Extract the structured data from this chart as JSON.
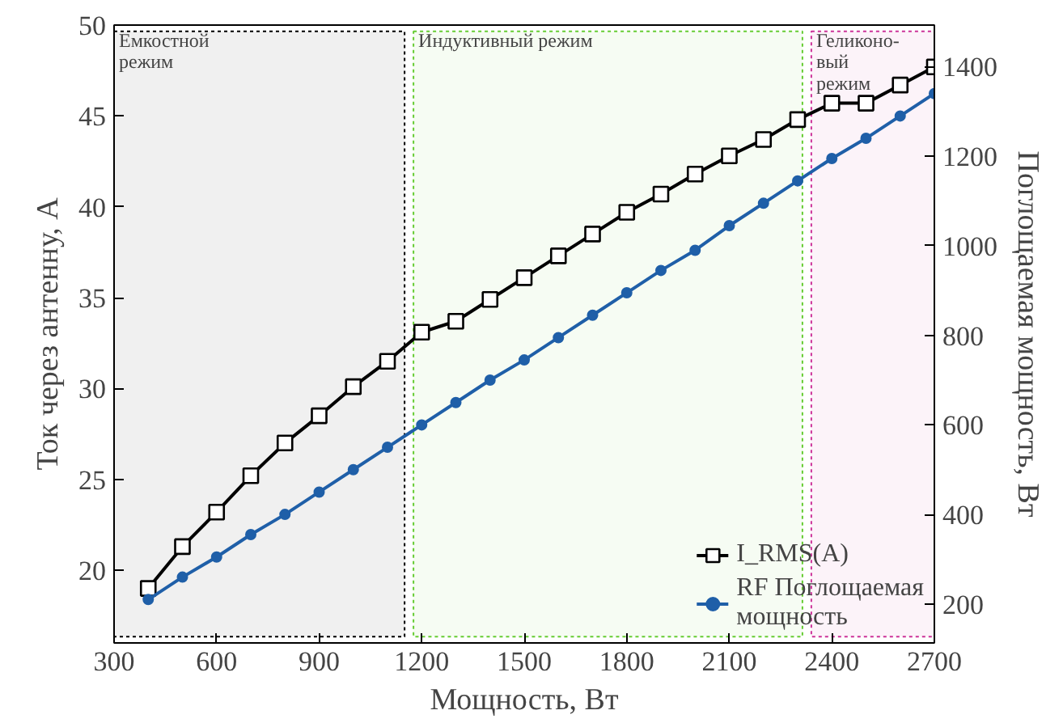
{
  "chart_data": {
    "type": "line",
    "xlabel": "Мощность, Вт",
    "ylabel": "Ток через антенну, А",
    "y2label": "Поглощаемая мощность, Вт",
    "x": [
      400,
      500,
      600,
      700,
      800,
      900,
      1000,
      1100,
      1200,
      1300,
      1400,
      1500,
      1600,
      1700,
      1800,
      1900,
      2000,
      2100,
      2200,
      2300,
      2400,
      2500,
      2600,
      2700
    ],
    "series": [
      {
        "name": "I_RMS(A)",
        "color": "#000000",
        "marker": "square",
        "values": [
          19.0,
          21.3,
          23.2,
          25.2,
          27.0,
          28.5,
          30.1,
          31.5,
          33.1,
          33.7,
          34.9,
          36.1,
          37.3,
          38.5,
          39.7,
          40.7,
          41.8,
          42.8,
          43.7,
          44.8,
          45.7,
          45.7,
          46.7,
          47.7
        ]
      },
      {
        "name": "RF Поглощаемая\nмощность",
        "color": "#1f5fa8",
        "marker": "circle",
        "axis": "y2",
        "values": [
          210,
          260,
          305,
          355,
          400,
          450,
          500,
          550,
          600,
          650,
          700,
          745,
          795,
          845,
          895,
          945,
          990,
          1045,
          1095,
          1145,
          1195,
          1240,
          1290,
          1340
        ]
      }
    ],
    "xlim": [
      300,
      2700
    ],
    "xticks": [
      300,
      600,
      900,
      1200,
      1500,
      1800,
      2100,
      2400,
      2700
    ],
    "ylim": [
      16,
      50
    ],
    "yticks": [
      20,
      25,
      30,
      35,
      40,
      45,
      50
    ],
    "y2lim": [
      113,
      1493
    ],
    "y2ticks": [
      200,
      400,
      600,
      800,
      1000,
      1200,
      1400
    ],
    "bands": [
      {
        "axis": "x",
        "from": 300,
        "to": 1150,
        "label": "Емкостной\nрежим",
        "color": "#000000"
      },
      {
        "axis": "x",
        "from": 1176,
        "to": 2314,
        "label": "Индуктивный режим",
        "color": "#66cc33"
      },
      {
        "axis": "x",
        "from": 2340,
        "to": 2700,
        "label": "Геликоно-\nвый\nрежим",
        "color": "#cc3399"
      }
    ],
    "grid": false,
    "legend": "bottom right",
    "line_style": "solid"
  }
}
